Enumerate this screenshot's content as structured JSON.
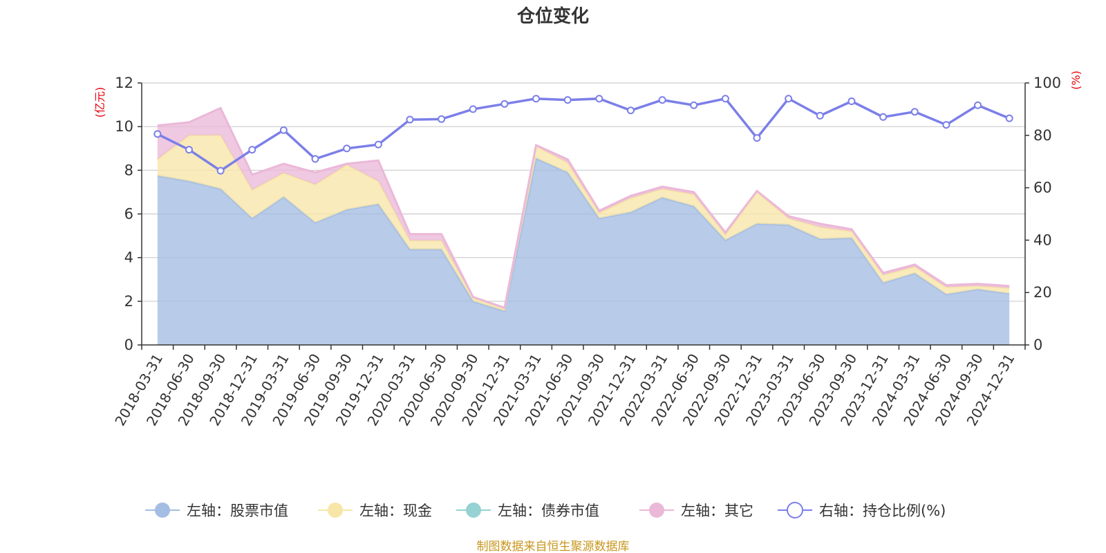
{
  "chart_data": {
    "type": "area",
    "title": "仓位变化",
    "left_axis": {
      "unit": "(亿元)",
      "ylim": [
        0,
        12
      ],
      "ticks": [
        0,
        2,
        4,
        6,
        8,
        10,
        12
      ],
      "color": "#e8000b"
    },
    "right_axis": {
      "unit": "(%)",
      "ylim": [
        0,
        100
      ],
      "ticks": [
        0,
        20,
        40,
        60,
        80,
        100
      ],
      "color": "#e8000b"
    },
    "grid": true,
    "legend_position": "bottom",
    "categories": [
      "2018-03-31",
      "2018-06-30",
      "2018-09-30",
      "2018-12-31",
      "2019-03-31",
      "2019-06-30",
      "2019-09-30",
      "2019-12-31",
      "2020-03-31",
      "2020-06-30",
      "2020-09-30",
      "2020-12-31",
      "2021-03-31",
      "2021-06-30",
      "2021-09-30",
      "2021-12-31",
      "2022-03-31",
      "2022-06-30",
      "2022-09-30",
      "2022-12-31",
      "2023-03-31",
      "2023-06-30",
      "2023-09-30",
      "2023-12-31",
      "2024-03-31",
      "2024-06-30",
      "2024-09-30",
      "2024-12-31"
    ],
    "series": [
      {
        "name": "左轴：股票市值",
        "axis": "left",
        "stack": true,
        "color": "#a4bde3",
        "values": [
          7.75,
          7.5,
          7.15,
          5.8,
          6.78,
          5.6,
          6.2,
          6.45,
          4.38,
          4.38,
          2.0,
          1.55,
          8.55,
          7.9,
          5.8,
          6.08,
          6.75,
          6.35,
          4.8,
          5.55,
          5.5,
          4.85,
          4.9,
          2.85,
          3.28,
          2.32,
          2.55,
          2.35
        ]
      },
      {
        "name": "左轴：现金",
        "axis": "left",
        "stack": true,
        "color": "#f7e6a8",
        "values": [
          0.75,
          2.1,
          2.45,
          1.3,
          1.1,
          1.75,
          2.05,
          1.05,
          0.4,
          0.4,
          0.15,
          0.1,
          0.55,
          0.45,
          0.25,
          0.65,
          0.4,
          0.55,
          0.25,
          1.45,
          0.3,
          0.55,
          0.3,
          0.35,
          0.3,
          0.32,
          0.15,
          0.25
        ]
      },
      {
        "name": "左轴：债券市值",
        "axis": "left",
        "stack": true,
        "color": "#96d2d3",
        "values": [
          0,
          0,
          0,
          0,
          0,
          0,
          0,
          0,
          0,
          0,
          0,
          0,
          0,
          0,
          0,
          0,
          0,
          0,
          0,
          0,
          0,
          0,
          0,
          0,
          0,
          0,
          0,
          0
        ]
      },
      {
        "name": "左轴：其它",
        "axis": "left",
        "stack": true,
        "color": "#ebb8d8",
        "values": [
          1.55,
          0.6,
          1.25,
          0.7,
          0.42,
          0.55,
          0.05,
          0.95,
          0.3,
          0.3,
          0.05,
          0.05,
          0.05,
          0.15,
          0.1,
          0.1,
          0.1,
          0.1,
          0.1,
          0.05,
          0.1,
          0.15,
          0.1,
          0.1,
          0.1,
          0.1,
          0.1,
          0.1
        ]
      },
      {
        "name": "右轴：持仓比例(%)",
        "axis": "right",
        "type": "line",
        "color": "#7b7fe8",
        "values": [
          80.5,
          74.5,
          66.5,
          74.5,
          82,
          71,
          75,
          76.5,
          86,
          86.2,
          90,
          92,
          94,
          93.5,
          94,
          89.5,
          93.5,
          91.5,
          94,
          79,
          94,
          87.5,
          93,
          87,
          89,
          84,
          91.5,
          86.5
        ]
      }
    ]
  },
  "source_note": "制图数据来自恒生聚源数据库"
}
